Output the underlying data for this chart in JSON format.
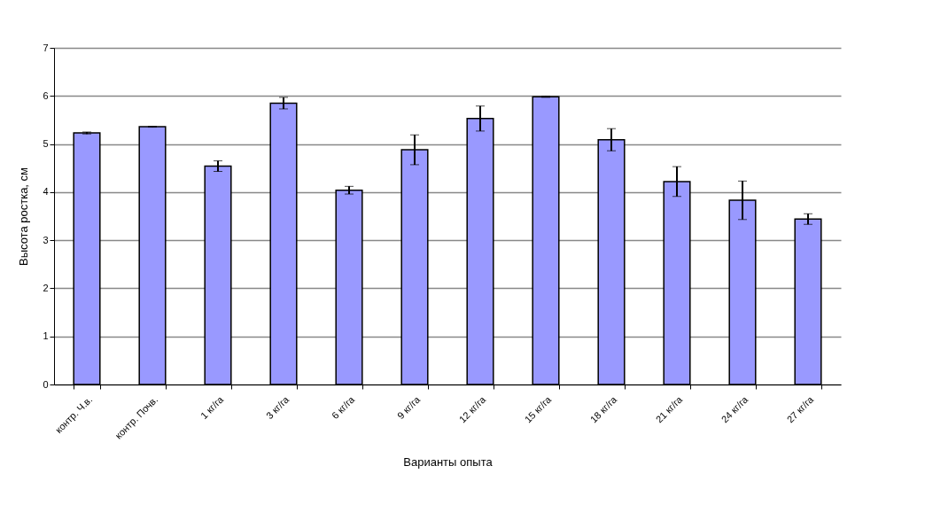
{
  "chart_data": {
    "type": "bar",
    "xlabel": "Варианты опыта",
    "ylabel": "Высота  ростка, см",
    "categories": [
      "контр. Ч.в.",
      "контр. Почв.",
      "1 кг/га",
      "3 кг/га",
      "6 кг/га",
      "9 кг/га",
      "12 кг/га",
      "15 кг/га",
      "18 кг/га",
      "21 кг/га",
      "24 кг/га",
      "27 кг/га"
    ],
    "values": [
      5.23,
      5.36,
      4.54,
      5.85,
      4.04,
      4.88,
      5.53,
      5.98,
      5.09,
      4.22,
      3.83,
      3.44
    ],
    "errors": [
      0.02,
      0.01,
      0.11,
      0.12,
      0.08,
      0.31,
      0.26,
      0.01,
      0.23,
      0.31,
      0.4,
      0.11
    ],
    "color": "#9999ff",
    "ylim": [
      0,
      7
    ],
    "yticks": [
      0,
      1,
      2,
      3,
      4,
      5,
      6,
      7
    ],
    "grid": "y"
  }
}
